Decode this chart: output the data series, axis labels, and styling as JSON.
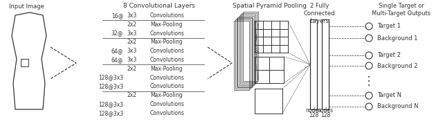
{
  "input_image_label": "Input Image",
  "conv_layers_title": "8 Convolutional Layers",
  "spp_title": "Spatial Pyramid Pooling",
  "fc_title": "2 Fully\nConnected\nLayers",
  "fc_nodes1": "128",
  "fc_nodes2": "128",
  "nodes_label": "nodes",
  "output_title": "Single Target or\nMulti-Target Outputs",
  "conv_text_lines": [
    [
      "16@",
      "3x3",
      "Convolutions"
    ],
    [
      "",
      "2x2",
      "Max-Pooling"
    ],
    [
      "32@",
      "3x3",
      "Convolutions"
    ],
    [
      "",
      "2x2",
      "Max-Pooling"
    ],
    [
      "64@",
      "3x3",
      "Convolutions"
    ],
    [
      "64@",
      "3x3",
      "Convolutions"
    ],
    [
      "",
      "2x2",
      "Max-Pooling"
    ],
    [
      "128@3x3",
      "",
      "Convolutions"
    ],
    [
      "128@3x3",
      "",
      "Convolutions"
    ],
    [
      "",
      "2x2",
      "Max-Pooling"
    ],
    [
      "128@3x3",
      "",
      "Convolutions"
    ],
    [
      "128@3x3",
      "",
      "Convolutions"
    ]
  ],
  "hr_lines_after": [
    1,
    3,
    6,
    9
  ],
  "output_labels": [
    "Target 1",
    "Background 1",
    "Target 2",
    "Background 2",
    "Target N",
    "Background N"
  ],
  "bg_color": "#ffffff",
  "line_color": "#333333"
}
